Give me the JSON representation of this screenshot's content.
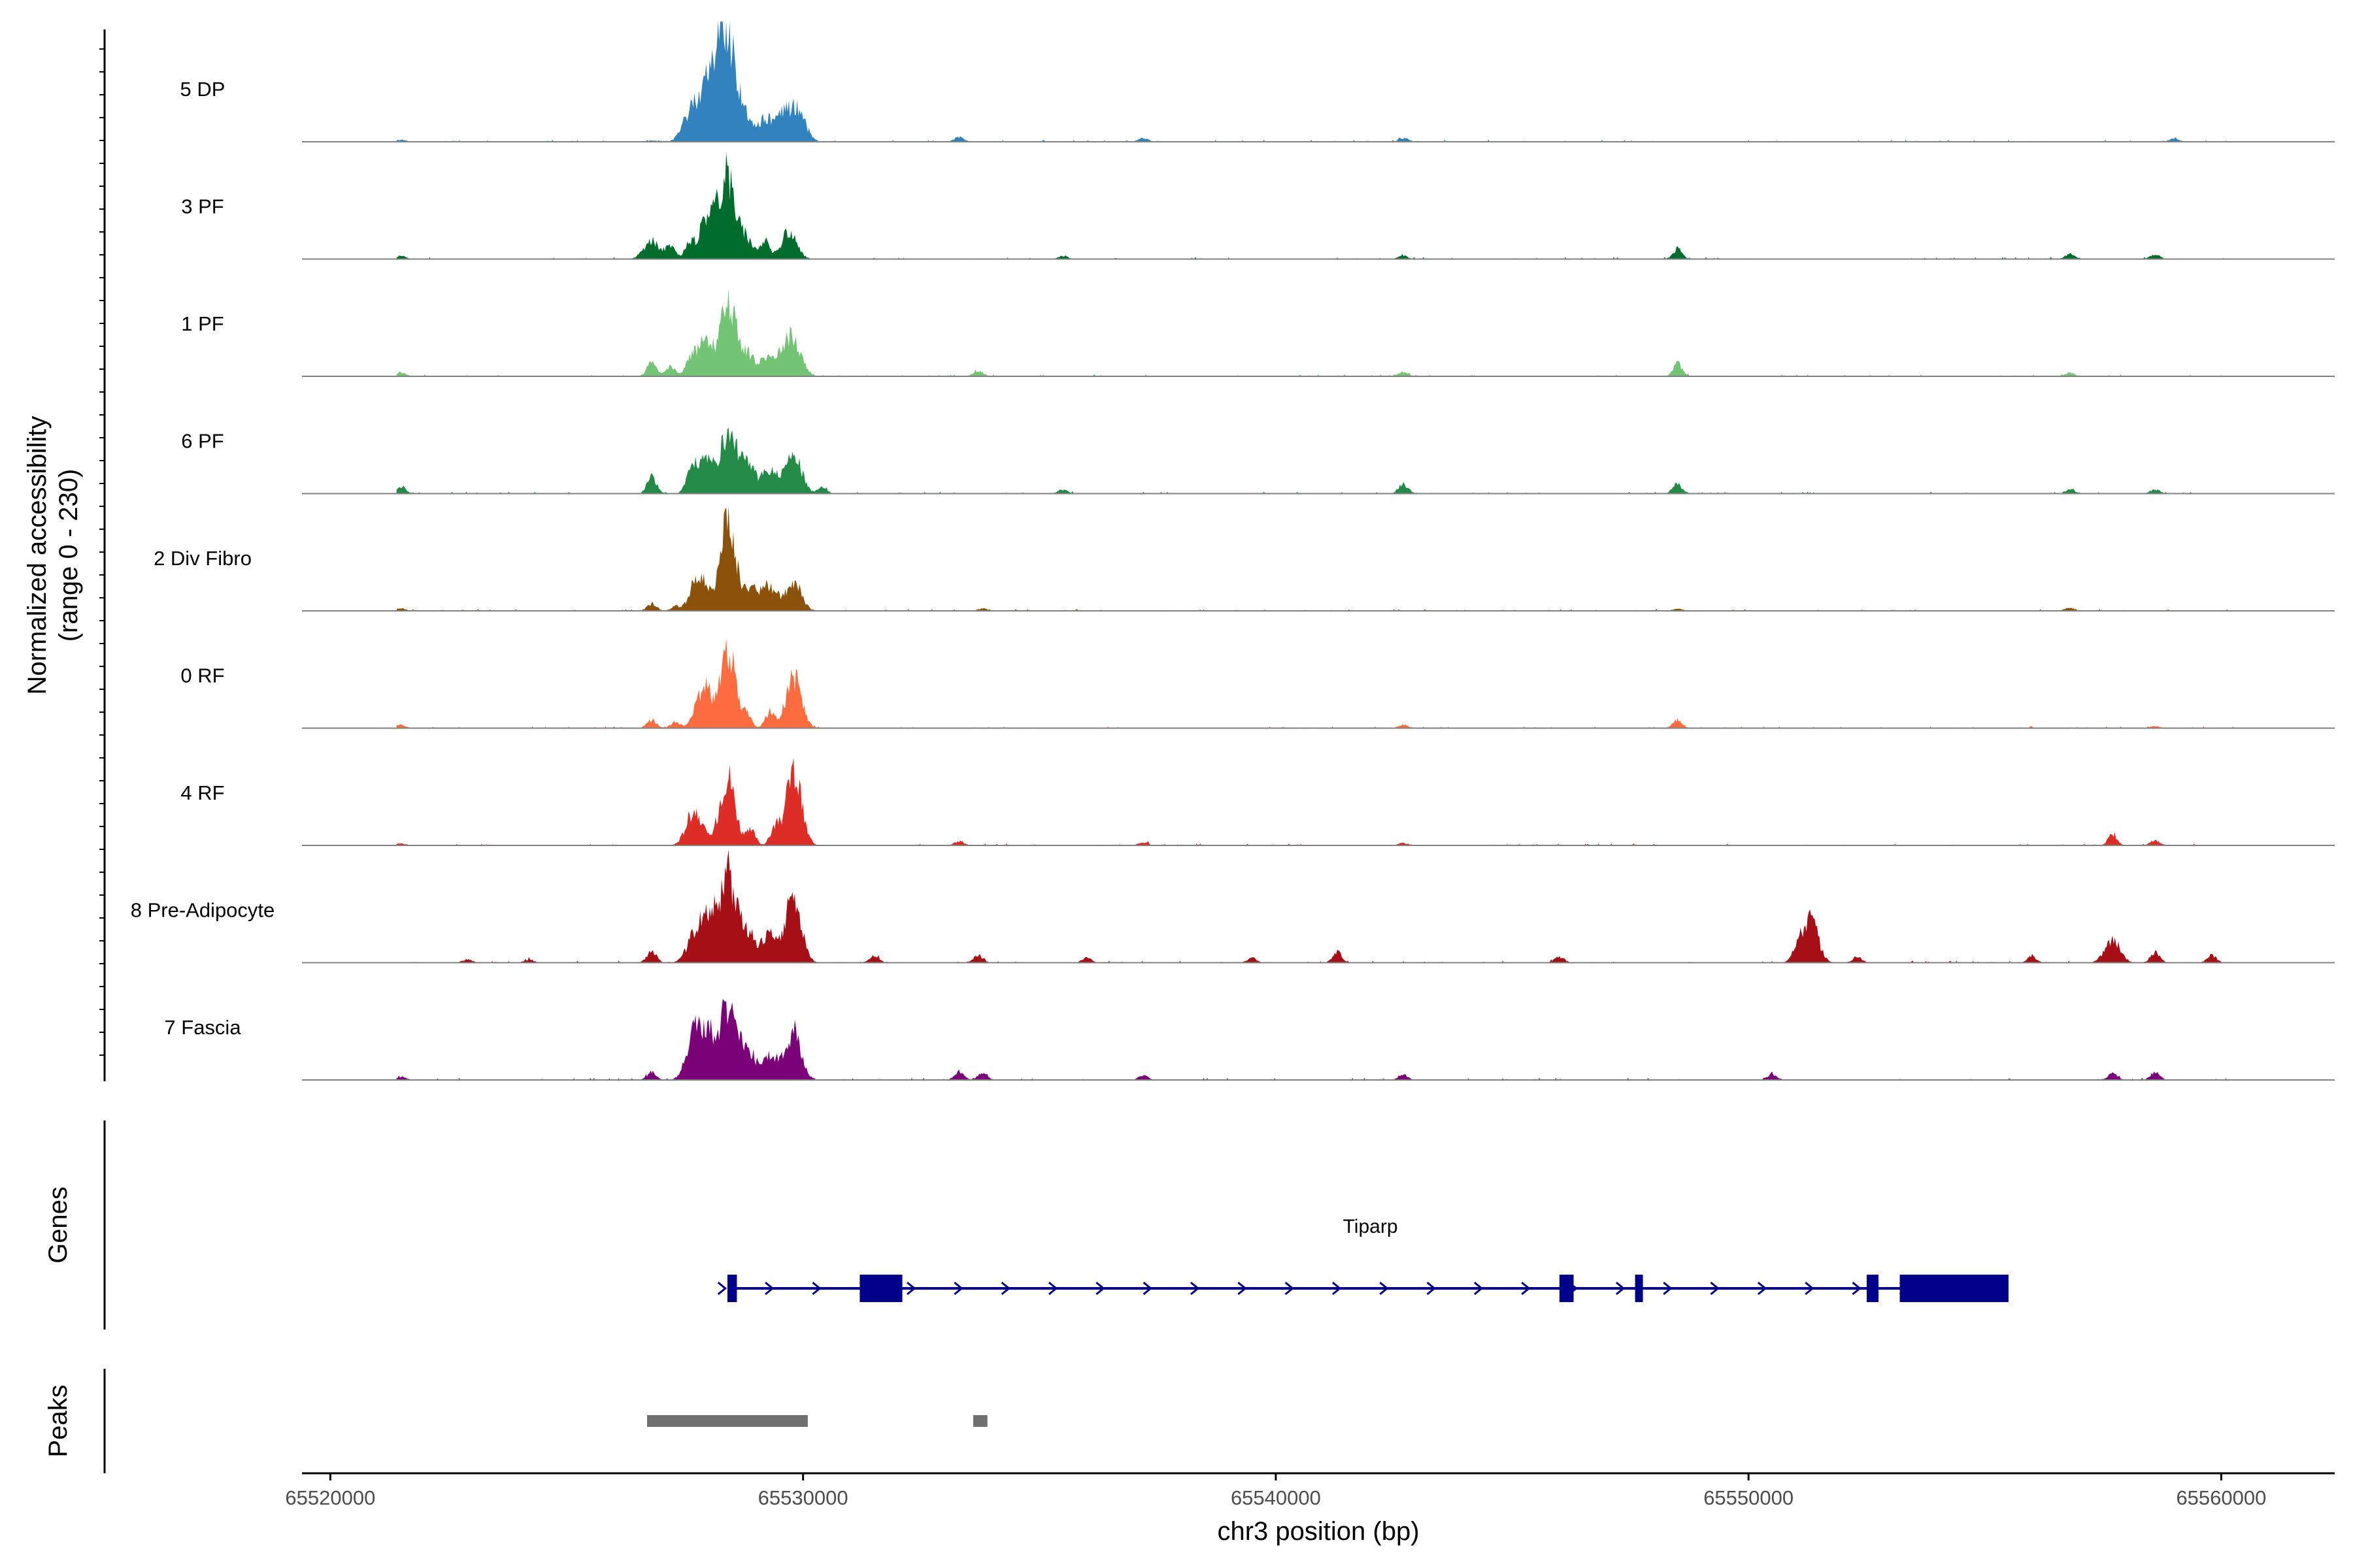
{
  "chart_data": {
    "type": "area",
    "title": "",
    "y_axis_title_line1": "Normalized accessibility",
    "y_axis_title_line2": "(range 0 - 230)",
    "ylim": [
      0,
      230
    ],
    "xlabel": "chr3 position (bp)",
    "xlim": [
      65519400,
      65562400
    ],
    "xticks": [
      65520000,
      65530000,
      65540000,
      65550000,
      65560000
    ],
    "xtick_labels": [
      "65520000",
      "65530000",
      "65540000",
      "65550000",
      "65560000"
    ],
    "tracks": [
      {
        "name": "5 DP",
        "color": "#3182bd",
        "peaks": [
          [
            65521500,
            5
          ],
          [
            65526800,
            3
          ],
          [
            65527600,
            60
          ],
          [
            65527900,
            105
          ],
          [
            65528200,
            145
          ],
          [
            65528400,
            215
          ],
          [
            65528700,
            70
          ],
          [
            65529200,
            55
          ],
          [
            65529600,
            60
          ],
          [
            65529900,
            70
          ],
          [
            65533300,
            12
          ],
          [
            65537200,
            10
          ],
          [
            65542700,
            10
          ],
          [
            65559000,
            8
          ]
        ]
      },
      {
        "name": "3 PF",
        "color": "#006d2c",
        "peaks": [
          [
            65521500,
            8
          ],
          [
            65526800,
            45
          ],
          [
            65527200,
            30
          ],
          [
            65527600,
            40
          ],
          [
            65528000,
            115
          ],
          [
            65528400,
            200
          ],
          [
            65528800,
            50
          ],
          [
            65529200,
            40
          ],
          [
            65529700,
            65
          ],
          [
            65535500,
            8
          ],
          [
            65542700,
            8
          ],
          [
            65548500,
            25
          ],
          [
            65556800,
            12
          ],
          [
            65558600,
            12
          ]
        ]
      },
      {
        "name": "1 PF",
        "color": "#74c476",
        "peaks": [
          [
            65521500,
            10
          ],
          [
            65526800,
            35
          ],
          [
            65527200,
            25
          ],
          [
            65527600,
            30
          ],
          [
            65527900,
            90
          ],
          [
            65528400,
            180
          ],
          [
            65528800,
            60
          ],
          [
            65529200,
            40
          ],
          [
            65529500,
            45
          ],
          [
            65529800,
            90
          ],
          [
            65533700,
            15
          ],
          [
            65542700,
            10
          ],
          [
            65548500,
            30
          ],
          [
            65556800,
            8
          ]
        ]
      },
      {
        "name": "6 PF",
        "color": "#238b45",
        "peaks": [
          [
            65521500,
            18
          ],
          [
            65526800,
            40
          ],
          [
            65527600,
            35
          ],
          [
            65527900,
            100
          ],
          [
            65528400,
            150
          ],
          [
            65528800,
            80
          ],
          [
            65529300,
            60
          ],
          [
            65529800,
            100
          ],
          [
            65530400,
            15
          ],
          [
            65535500,
            10
          ],
          [
            65542700,
            25
          ],
          [
            65548500,
            25
          ],
          [
            65556800,
            10
          ],
          [
            65558600,
            10
          ]
        ]
      },
      {
        "name": "2 Div Fibro",
        "color": "#8c510a",
        "peaks": [
          [
            65521500,
            6
          ],
          [
            65526800,
            18
          ],
          [
            65527300,
            10
          ],
          [
            65527800,
            95
          ],
          [
            65528400,
            220
          ],
          [
            65528900,
            60
          ],
          [
            65529300,
            55
          ],
          [
            65529800,
            70
          ],
          [
            65533800,
            6
          ],
          [
            65548500,
            5
          ],
          [
            65556800,
            8
          ]
        ]
      },
      {
        "name": "0 RF",
        "color": "#fc6c3f",
        "peaks": [
          [
            65521500,
            8
          ],
          [
            65526800,
            20
          ],
          [
            65527300,
            15
          ],
          [
            65527900,
            100
          ],
          [
            65528400,
            200
          ],
          [
            65528800,
            40
          ],
          [
            65529300,
            40
          ],
          [
            65529800,
            125
          ],
          [
            65542700,
            8
          ],
          [
            65548500,
            20
          ],
          [
            65558600,
            5
          ]
        ]
      },
      {
        "name": "4 RF",
        "color": "#de2d26",
        "peaks": [
          [
            65521500,
            5
          ],
          [
            65527700,
            90
          ],
          [
            65528400,
            175
          ],
          [
            65528900,
            35
          ],
          [
            65529400,
            40
          ],
          [
            65529800,
            180
          ],
          [
            65533300,
            10
          ],
          [
            65537200,
            8
          ],
          [
            65542700,
            6
          ],
          [
            65557700,
            25
          ],
          [
            65558600,
            12
          ]
        ]
      },
      {
        "name": "8 Pre-Adipocyte",
        "color": "#a50f15",
        "peaks": [
          [
            65522900,
            8
          ],
          [
            65524200,
            8
          ],
          [
            65526800,
            30
          ],
          [
            65527700,
            60
          ],
          [
            65528000,
            115
          ],
          [
            65528400,
            210
          ],
          [
            65528800,
            80
          ],
          [
            65529300,
            70
          ],
          [
            65529800,
            165
          ],
          [
            65531500,
            18
          ],
          [
            65533700,
            20
          ],
          [
            65536000,
            12
          ],
          [
            65539500,
            12
          ],
          [
            65541300,
            25
          ],
          [
            65546000,
            15
          ],
          [
            65551000,
            30
          ],
          [
            65551300,
            110
          ],
          [
            65552300,
            15
          ],
          [
            65556000,
            15
          ],
          [
            65557700,
            55
          ],
          [
            65558600,
            25
          ],
          [
            65559800,
            18
          ]
        ]
      },
      {
        "name": "7 Fascia",
        "color": "#7a0177",
        "peaks": [
          [
            65521500,
            8
          ],
          [
            65526800,
            20
          ],
          [
            65527700,
            115
          ],
          [
            65528000,
            95
          ],
          [
            65528400,
            175
          ],
          [
            65528800,
            80
          ],
          [
            65529300,
            65
          ],
          [
            65529800,
            120
          ],
          [
            65533300,
            20
          ],
          [
            65533800,
            18
          ],
          [
            65537200,
            12
          ],
          [
            65542700,
            12
          ],
          [
            65550500,
            15
          ],
          [
            65557700,
            15
          ],
          [
            65558600,
            18
          ]
        ]
      }
    ],
    "genes": {
      "title": "Genes",
      "name": "Tiparp",
      "strand": "+",
      "color": "#00008b",
      "start": 65528400,
      "end": 65555500,
      "exons": [
        [
          65528400,
          65528600
        ],
        [
          65531200,
          65532100
        ],
        [
          65546000,
          65546300
        ],
        [
          65547600,
          65547750
        ],
        [
          65552500,
          65552750
        ],
        [
          65553200,
          65555500
        ]
      ]
    },
    "peaks_track": {
      "title": "Peaks",
      "color": "#707070",
      "regions": [
        [
          65526700,
          65530100
        ],
        [
          65533600,
          65533900
        ]
      ]
    }
  }
}
